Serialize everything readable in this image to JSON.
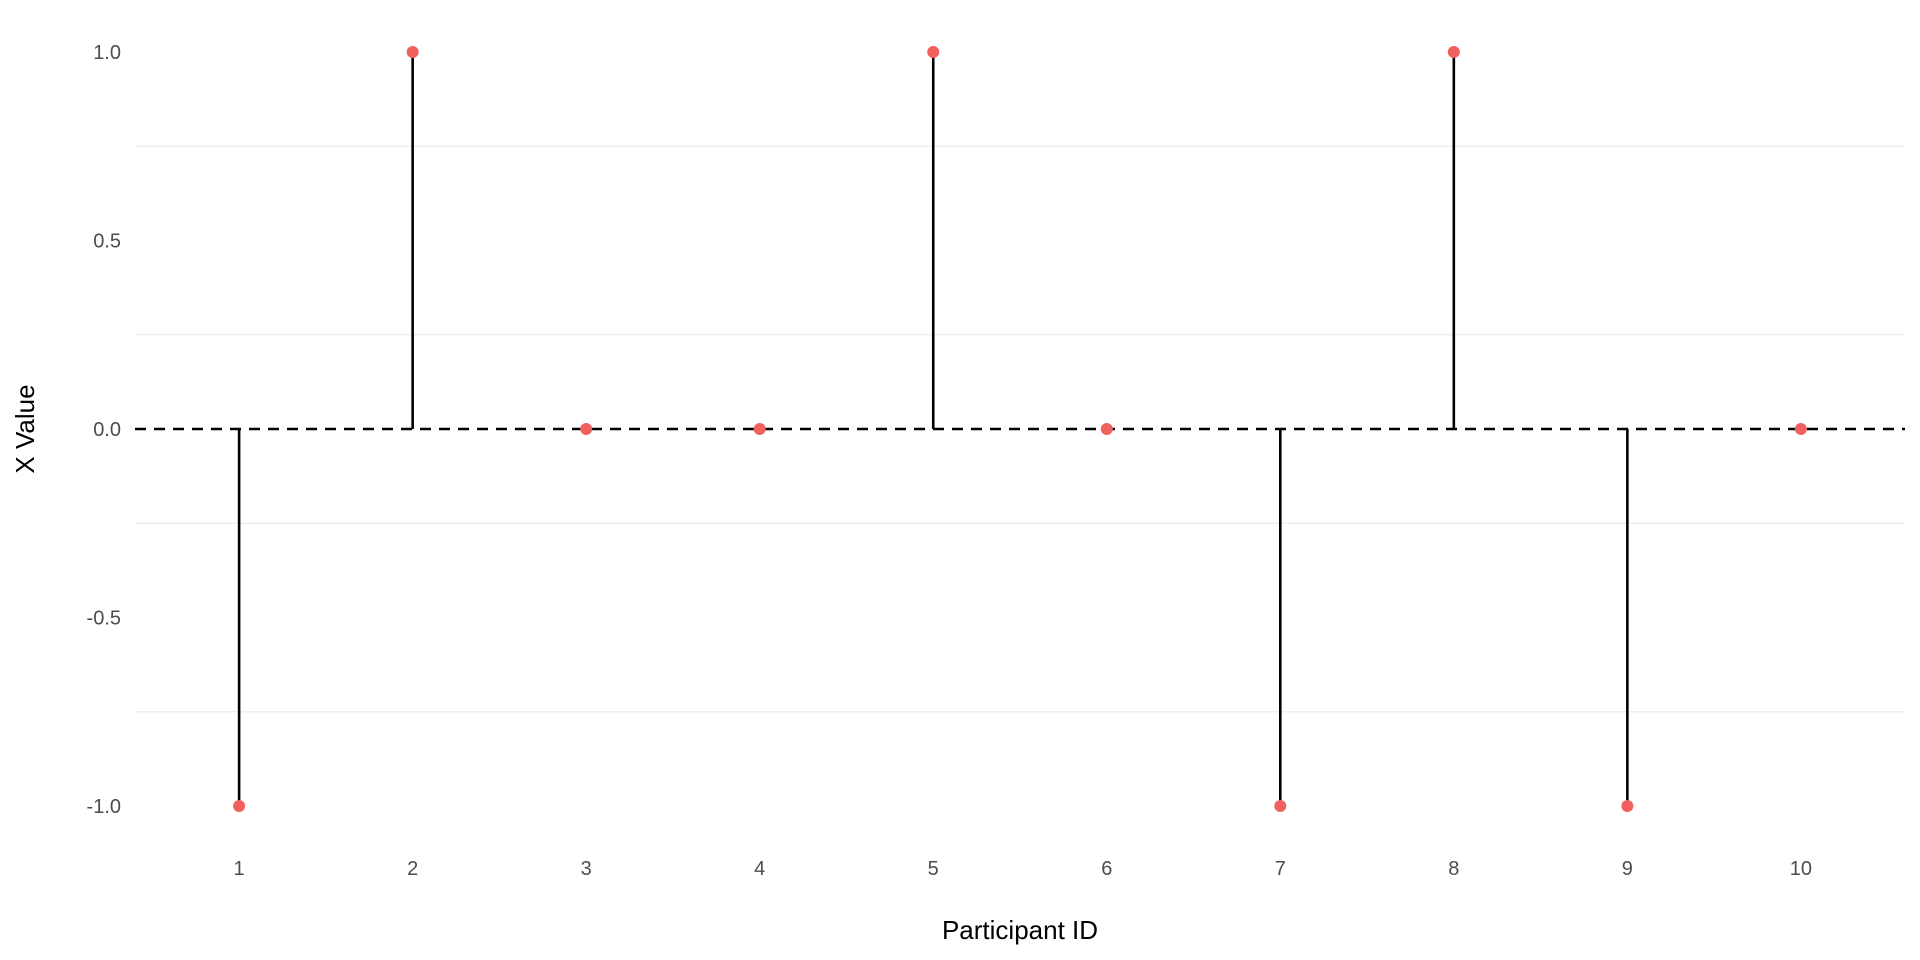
{
  "chart_data": {
    "type": "scatter",
    "variant": "lollipop",
    "title": "",
    "xlabel": "Participant ID",
    "ylabel": "X Value",
    "x": [
      1,
      2,
      3,
      4,
      5,
      6,
      7,
      8,
      9,
      10
    ],
    "x_ticks": [
      "1",
      "2",
      "3",
      "4",
      "5",
      "6",
      "7",
      "8",
      "9",
      "10"
    ],
    "y": [
      -1,
      1,
      0,
      0,
      1,
      0,
      -1,
      1,
      -1,
      0
    ],
    "y_ticks": [
      "-1.0",
      "-0.5",
      "0.0",
      "0.5",
      "1.0"
    ],
    "ylim": [
      -1,
      1
    ],
    "xlim": [
      0.4,
      10.6
    ],
    "reference_line": {
      "y": 0,
      "style": "dashed",
      "color": "#000000"
    },
    "point_color": "#f0605e",
    "stem_color": "#000000",
    "grid": true,
    "grid_color": "#ebebeb",
    "legend": "none"
  }
}
